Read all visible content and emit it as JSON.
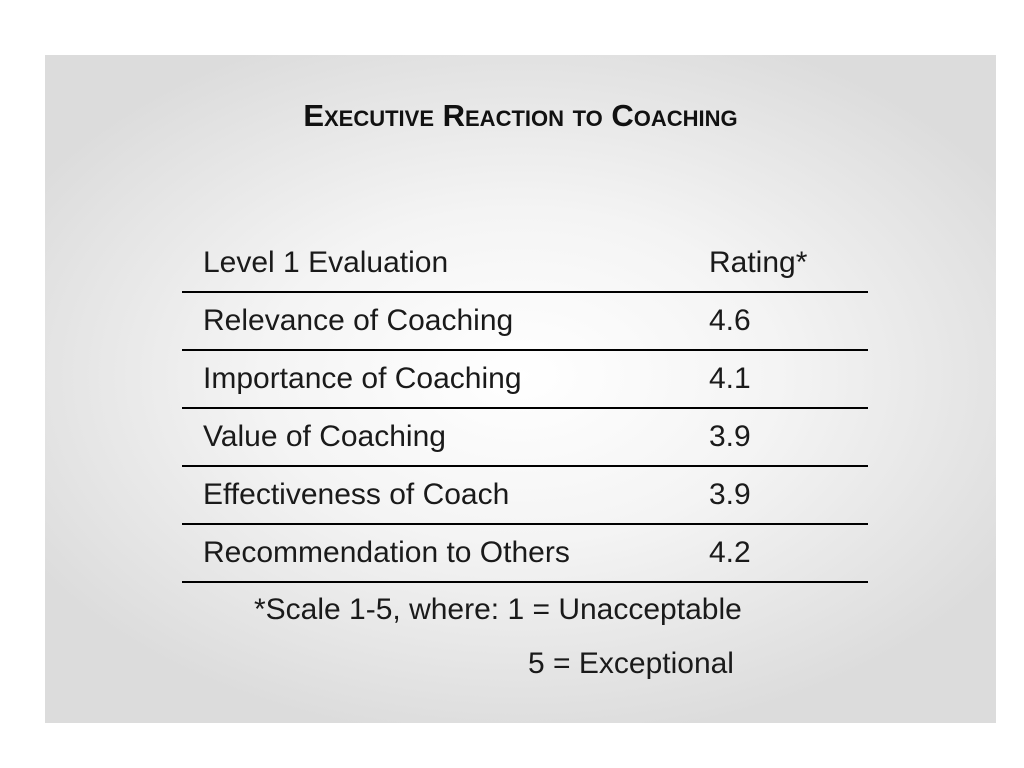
{
  "title": "Executive Reaction to Coaching",
  "table": {
    "headers": [
      "Level 1 Evaluation",
      "Rating*"
    ],
    "rows": [
      {
        "item": "Relevance of Coaching",
        "rating": "4.6"
      },
      {
        "item": "Importance of Coaching",
        "rating": "4.1"
      },
      {
        "item": "Value of Coaching",
        "rating": "3.9"
      },
      {
        "item": "Effectiveness of Coach",
        "rating": "3.9"
      },
      {
        "item": "Recommendation to Others",
        "rating": "4.2"
      }
    ]
  },
  "footnote": {
    "line1": "*Scale 1-5, where: 1 = Unacceptable",
    "line2": "5 = Exceptional"
  }
}
